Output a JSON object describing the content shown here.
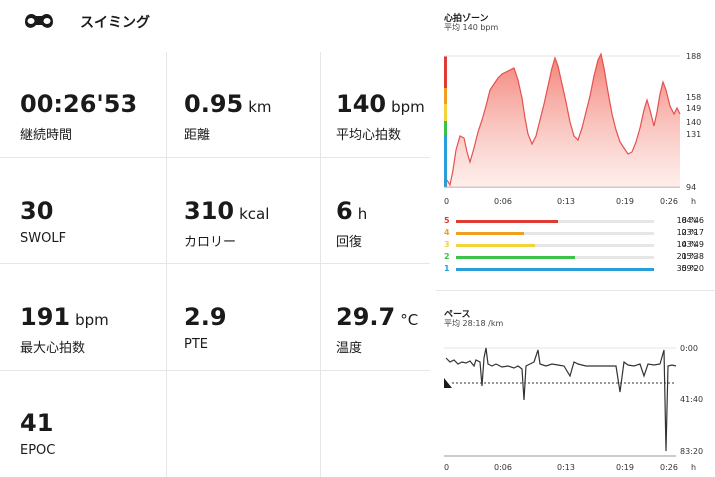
{
  "header": {
    "title": "スイミング",
    "icon": "goggles-icon"
  },
  "stats": [
    {
      "value": "00:26'53",
      "unit": "",
      "label": "継続時間"
    },
    {
      "value": "0.95",
      "unit": "km",
      "label": "距離"
    },
    {
      "value": "140",
      "unit": "bpm",
      "label": "平均心拍数"
    },
    {
      "value": "30",
      "unit": "",
      "label": "SWOLF"
    },
    {
      "value": "310",
      "unit": "kcal",
      "label": "カロリー"
    },
    {
      "value": "6",
      "unit": "h",
      "label": "回復"
    },
    {
      "value": "191",
      "unit": "bpm",
      "label": "最大心拍数"
    },
    {
      "value": "2.9",
      "unit": "",
      "label": "PTE"
    },
    {
      "value": "29.7",
      "unit": "°C",
      "label": "温度"
    },
    {
      "value": "41",
      "unit": "",
      "label": "EPOC"
    }
  ],
  "hr_zone": {
    "title": "心拍ゾーン",
    "subtitle": "平均 140 bpm",
    "y_labels": [
      "188",
      "158",
      "149",
      "140",
      "131",
      "94"
    ],
    "x_labels": [
      "0",
      "0:06",
      "0:13",
      "0:19",
      "0:26",
      "h"
    ],
    "colors": {
      "line": "#e65050",
      "fill_top": "#f27a6e",
      "fill_bottom": "#fde3df"
    },
    "zones": [
      {
        "num": "5",
        "pct": "18 %",
        "pct_value": 18,
        "time": "04'46",
        "color": "#e03a35"
      },
      {
        "num": "4",
        "pct": "12 %",
        "pct_value": 12,
        "time": "03'17",
        "color": "#f0a020"
      },
      {
        "num": "3",
        "pct": "14 %",
        "pct_value": 14,
        "time": "03'49",
        "color": "#f2d33a"
      },
      {
        "num": "2",
        "pct": "21 %",
        "pct_value": 21,
        "time": "05'38",
        "color": "#3cc24a"
      },
      {
        "num": "1",
        "pct": "35 %",
        "pct_value": 35,
        "time": "09'20",
        "color": "#2a9ed8"
      }
    ]
  },
  "pace": {
    "title": "ペース",
    "subtitle": "平均 28:18 /km",
    "y_labels": [
      "0:00",
      "41:40",
      "83:20"
    ],
    "x_labels": [
      "0",
      "0:06",
      "0:13",
      "0:19",
      "0:26",
      "h"
    ]
  }
}
